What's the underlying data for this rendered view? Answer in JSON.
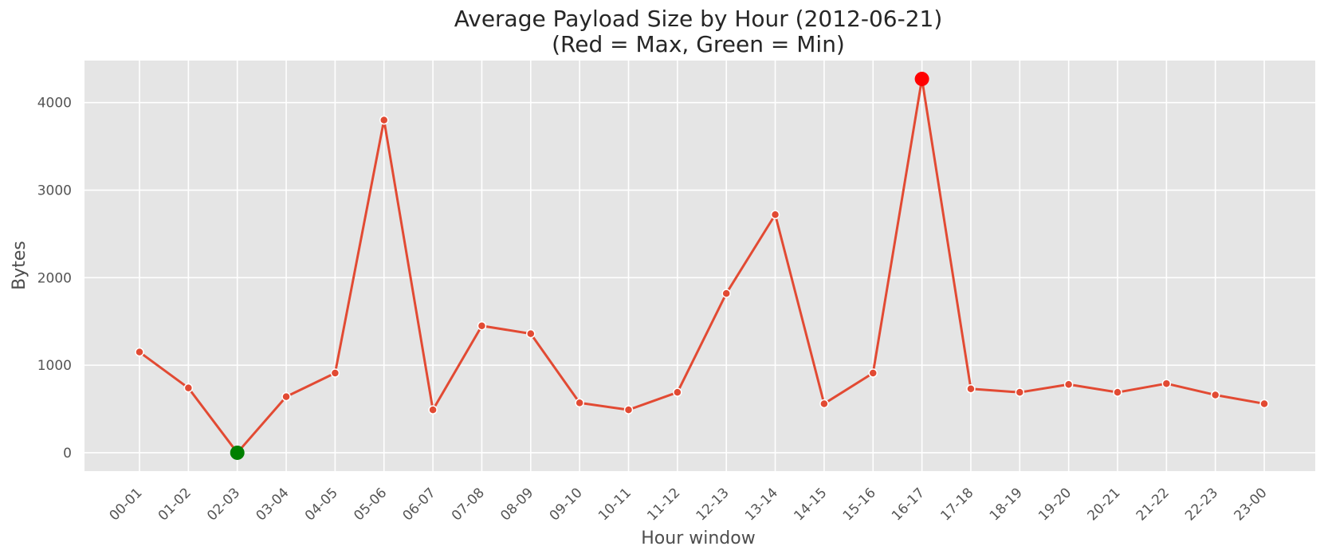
{
  "chart_data": {
    "type": "line",
    "title_line1": "Average Payload Size by Hour  (2012-06-21)",
    "title_line2": "(Red = Max, Green = Min)",
    "xlabel": "Hour window",
    "ylabel": "Bytes",
    "categories": [
      "00-01",
      "01-02",
      "02-03",
      "03-04",
      "04-05",
      "05-06",
      "06-07",
      "07-08",
      "08-09",
      "09-10",
      "10-11",
      "11-12",
      "12-13",
      "13-14",
      "14-15",
      "15-16",
      "16-17",
      "17-18",
      "18-19",
      "19-20",
      "20-21",
      "21-22",
      "22-23",
      "23-00"
    ],
    "series": [
      {
        "values": [
          1150,
          740,
          0,
          640,
          910,
          3800,
          490,
          1450,
          1360,
          570,
          490,
          690,
          1820,
          2720,
          560,
          910,
          4270,
          730,
          690,
          780,
          690,
          790,
          660,
          560
        ]
      }
    ],
    "yticks": [
      0,
      1000,
      2000,
      3000,
      4000
    ],
    "ylim": [
      -210,
      4480
    ],
    "grid": true,
    "max_index": 16,
    "min_index": 2,
    "colors": {
      "line": "#e24a33",
      "max_marker": "#ff0000",
      "min_marker": "#008000",
      "plot_background": "#e5e5e5",
      "grid": "#ffffff"
    }
  }
}
